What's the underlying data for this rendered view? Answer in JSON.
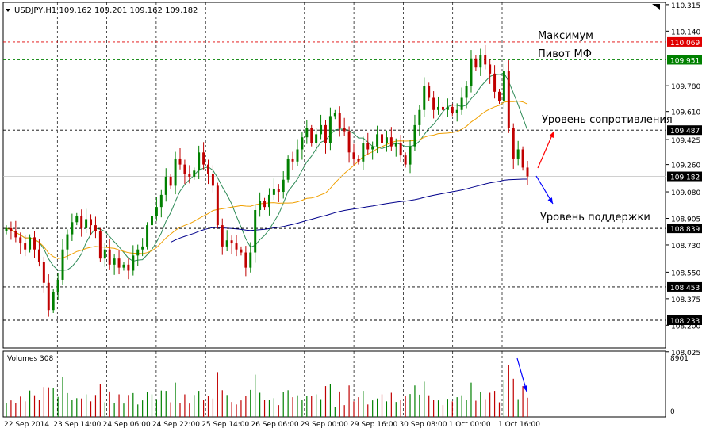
{
  "symbol_header": "USDJPY,H1  109.162 109.201 109.162 109.182",
  "volume_header": "Volumes 308",
  "colors": {
    "bull": "#008000",
    "bear": "#c00000",
    "ma_fast": "#2e8b57",
    "ma_mid": "#f0a000",
    "ma_slow": "#00008b",
    "level_max": "#e00000",
    "level_pivot": "#008000",
    "level_other": "#000000",
    "current_price": "#c0c0c0",
    "arrow_up": "#ff0000",
    "arrow_down": "#0000ff"
  },
  "annotations": {
    "max_label": "Максимум",
    "pivot_label": "Пивот МФ",
    "resistance_label": "Уровень сопротивления",
    "support_label": "Уровень поддержки"
  },
  "chart_data": {
    "type": "candlestick",
    "symbol": "USDJPY",
    "timeframe": "H1",
    "ylim": [
      108.05,
      110.33
    ],
    "y_ticks": [
      110.315,
      110.14,
      109.78,
      109.61,
      109.425,
      109.26,
      109.08,
      108.905,
      108.73,
      108.55,
      108.375,
      108.2,
      108.025
    ],
    "x_tick_labels": [
      "22 Sep 2014",
      "23 Sep 14:00",
      "24 Sep 06:00",
      "24 Sep 22:00",
      "25 Sep 14:00",
      "26 Sep 06:00",
      "29 Sep 00:00",
      "29 Sep 16:00",
      "30 Sep 08:00",
      "1 Oct 00:00",
      "1 Oct 16:00"
    ],
    "levels": [
      {
        "name": "Максимум",
        "value": 110.069,
        "label": "110.069",
        "style": "max"
      },
      {
        "name": "Пивот МФ",
        "value": 109.951,
        "label": "109.951",
        "style": "pivot"
      },
      {
        "name": "Уровень сопротивления",
        "value": 109.487,
        "label": "109.487",
        "style": "other"
      },
      {
        "name": "current",
        "value": 109.182,
        "label": "109.182",
        "style": "current"
      },
      {
        "name": "Уровень поддержки",
        "value": 108.839,
        "label": "108.839",
        "style": "other"
      },
      {
        "name": "",
        "value": 108.453,
        "label": "108.453",
        "style": "other"
      },
      {
        "name": "",
        "value": 108.233,
        "label": "108.233",
        "style": "other"
      }
    ],
    "close": [
      108.84,
      108.82,
      108.78,
      108.74,
      108.7,
      108.78,
      108.7,
      108.62,
      108.48,
      108.3,
      108.42,
      108.5,
      108.7,
      108.8,
      108.88,
      108.92,
      108.84,
      108.9,
      108.86,
      108.82,
      108.64,
      108.7,
      108.6,
      108.64,
      108.58,
      108.6,
      108.56,
      108.66,
      108.7,
      108.72,
      108.86,
      108.92,
      108.98,
      109.06,
      109.18,
      109.12,
      109.3,
      109.26,
      109.2,
      109.18,
      109.22,
      109.34,
      109.26,
      109.2,
      109.12,
      108.86,
      108.72,
      108.76,
      108.74,
      108.7,
      108.68,
      108.58,
      108.68,
      108.96,
      109.02,
      108.98,
      109.06,
      109.1,
      109.08,
      109.16,
      109.3,
      109.28,
      109.36,
      109.44,
      109.5,
      109.4,
      109.46,
      109.52,
      109.4,
      109.58,
      109.6,
      109.5,
      109.48,
      109.34,
      109.3,
      109.28,
      109.4,
      109.36,
      109.38,
      109.46,
      109.4,
      109.44,
      109.38,
      109.4,
      109.32,
      109.26,
      109.38,
      109.52,
      109.62,
      109.78,
      109.7,
      109.62,
      109.64,
      109.62,
      109.64,
      109.6,
      109.62,
      109.7,
      109.78,
      109.96,
      109.9,
      109.98,
      109.92,
      109.86,
      109.74,
      109.68,
      109.88,
      109.5,
      109.3,
      109.36,
      109.24,
      109.182
    ],
    "volume_max": 8901,
    "volume_ylim": [
      0,
      8901
    ]
  }
}
